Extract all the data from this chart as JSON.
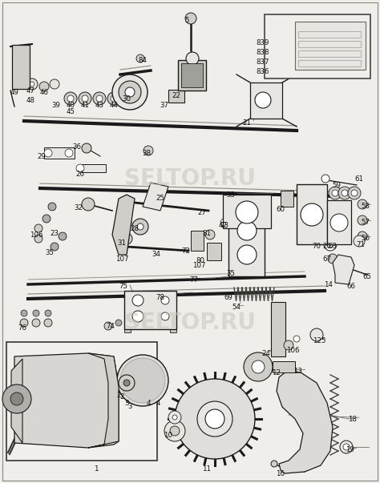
{
  "bg_color": "#f0eeea",
  "figsize": [
    4.74,
    6.03
  ],
  "dpi": 100,
  "watermark_text": "SELTOP.RU",
  "watermark_color": "#c8c4bc",
  "watermark_alpha": 0.55,
  "lc": "#1a1a1a",
  "fc_light": "#e8e6e2",
  "fc_mid": "#d0cec8",
  "fc_dark": "#b0aeaa"
}
